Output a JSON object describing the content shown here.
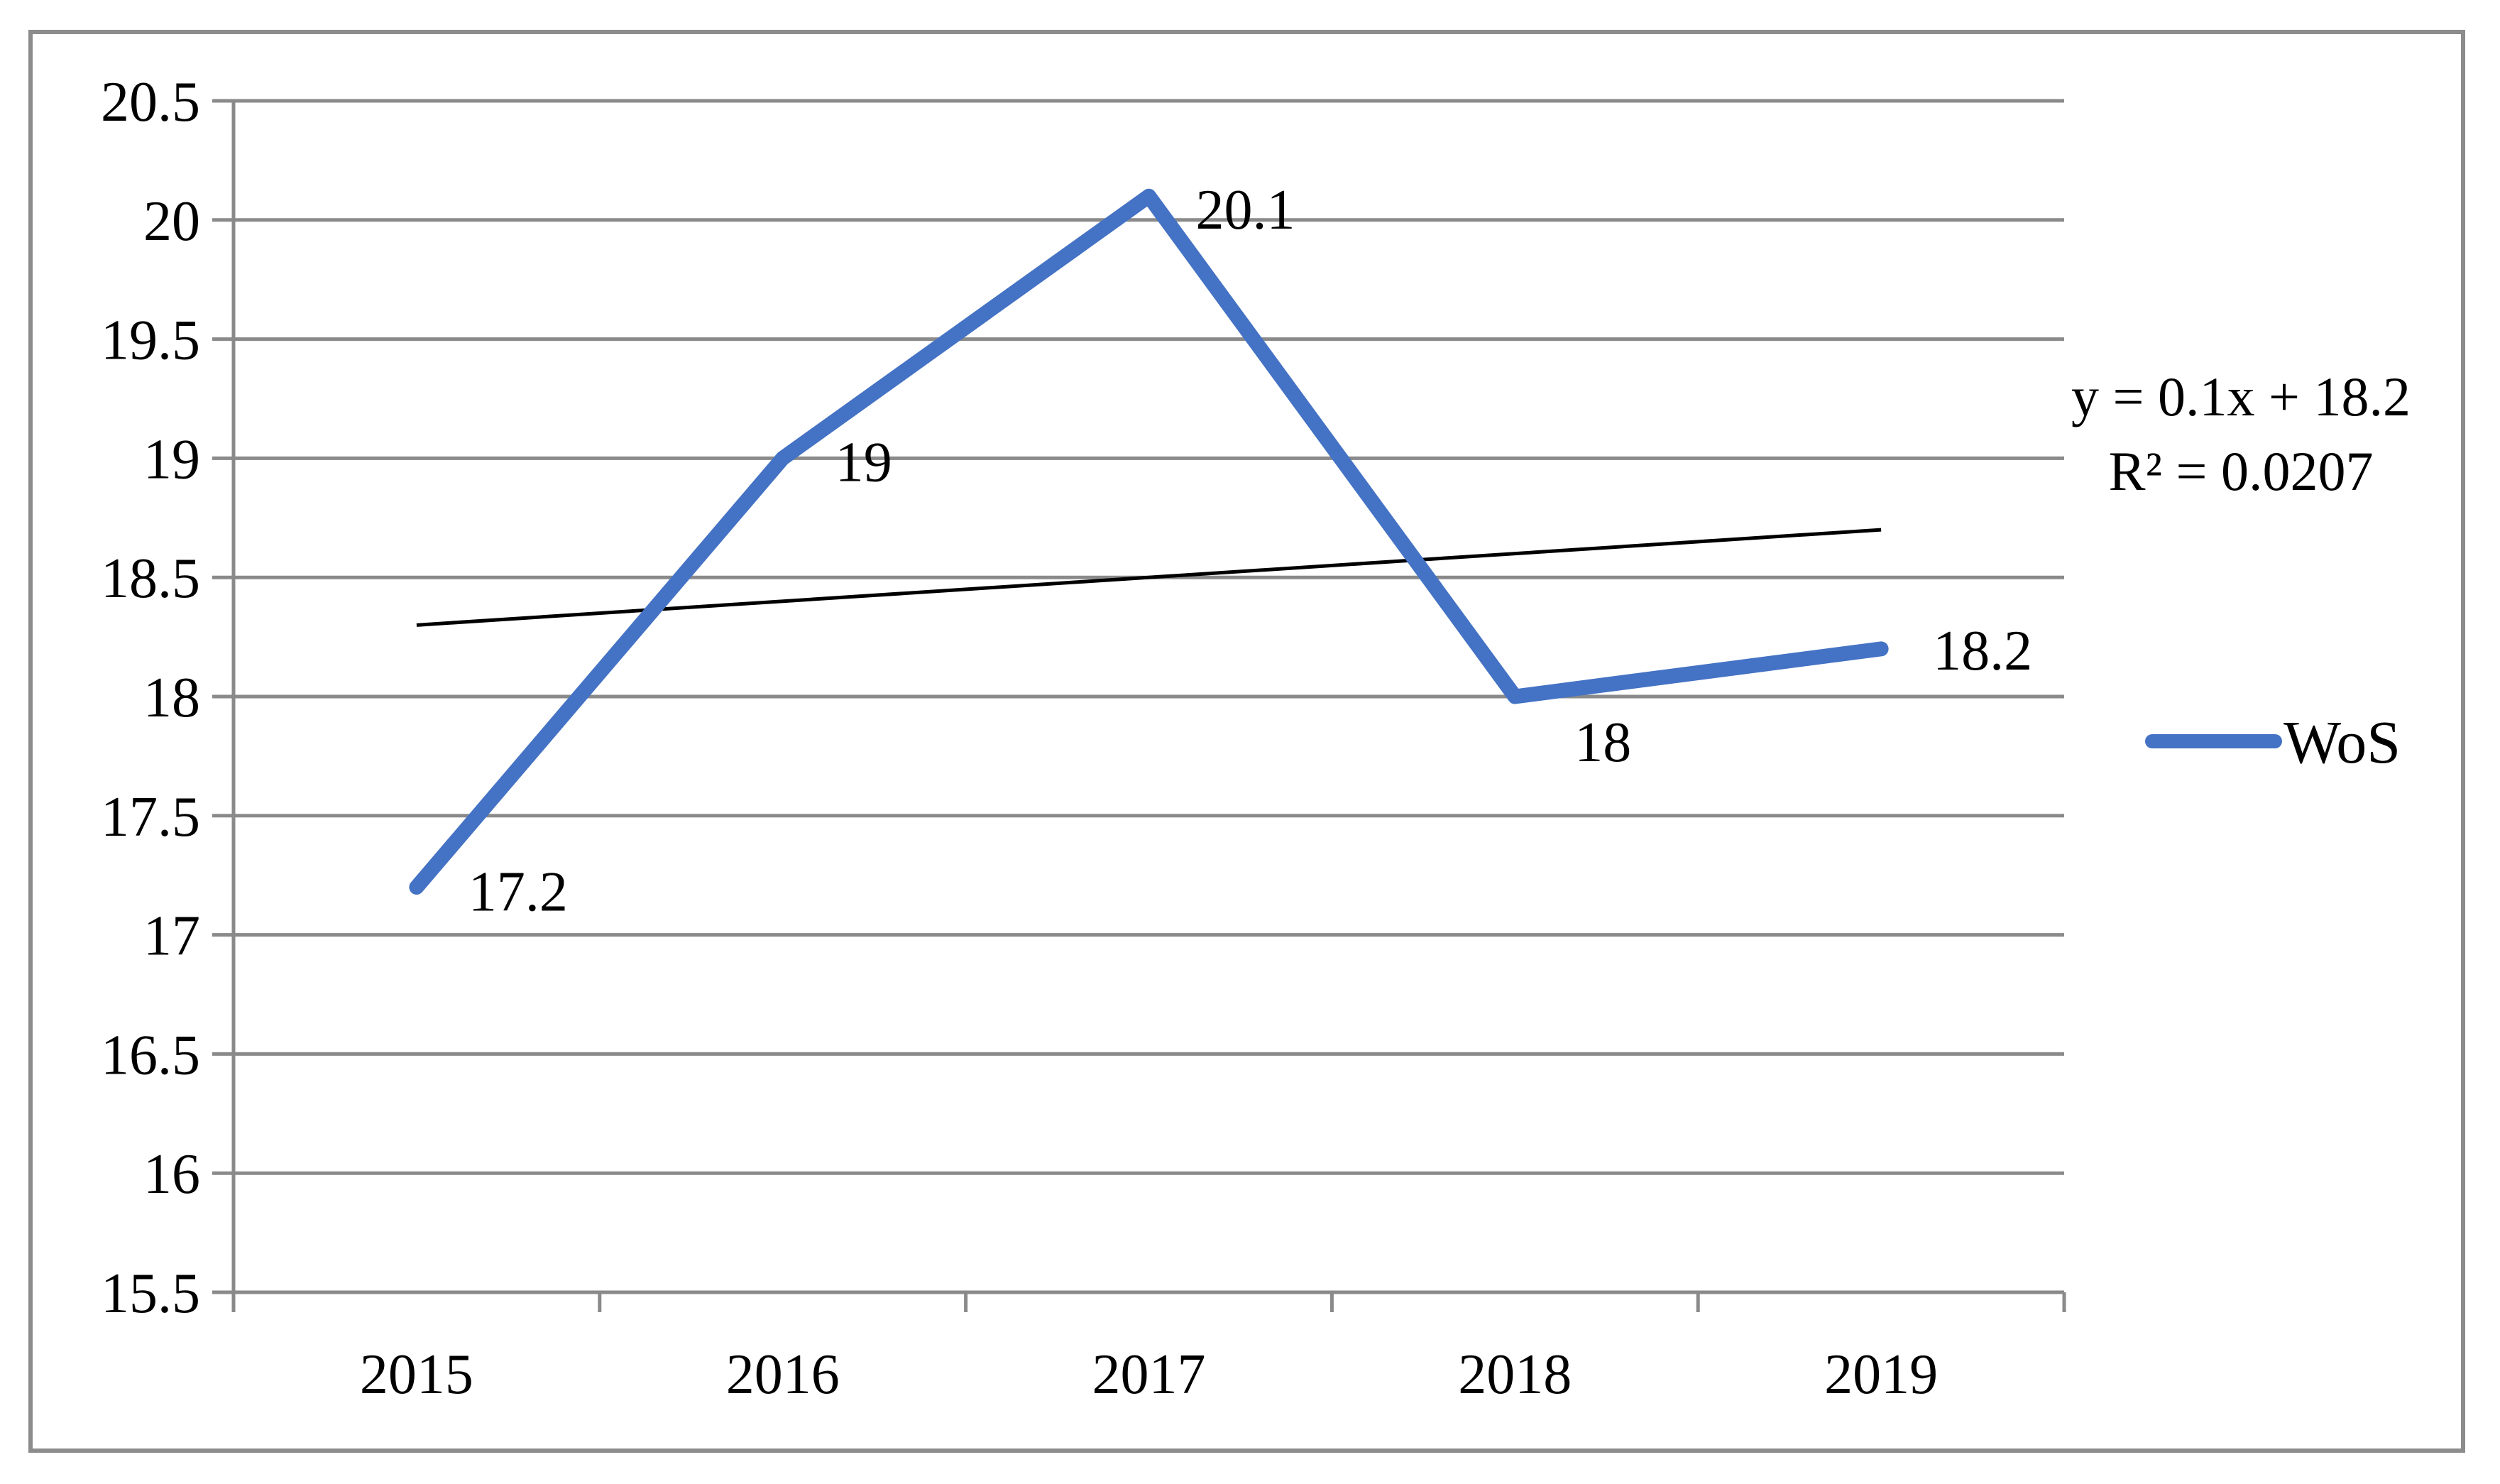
{
  "figure": {
    "background_color": "#ffffff",
    "border_color": "#8c8c8c"
  },
  "chart_data": {
    "type": "line",
    "title": "",
    "xlabel": "",
    "ylabel": "",
    "categories": [
      "2015",
      "2016",
      "2017",
      "2018",
      "2019"
    ],
    "series": [
      {
        "name": "WoS",
        "color": "#4472C4",
        "values": [
          17.2,
          19,
          20.1,
          18,
          18.2
        ],
        "data_labels": [
          "17.2",
          "19",
          "20.1",
          "18",
          "18.2"
        ]
      }
    ],
    "ylim": [
      15.5,
      20.5
    ],
    "ytick_step": 0.5,
    "yticks": [
      "20.5",
      "20",
      "19.5",
      "19",
      "18.5",
      "18",
      "17.5",
      "17",
      "16.5",
      "16",
      "15.5"
    ],
    "grid": true,
    "gridline_color": "#8a8a8a",
    "axis_color": "#8a8a8a",
    "legend_position": "right",
    "trendline": {
      "slope": 0.1,
      "intercept": 18.2,
      "color": "#000000",
      "equation": "y = 0.1x + 18.2",
      "r_squared": "R² = 0.0207"
    }
  }
}
